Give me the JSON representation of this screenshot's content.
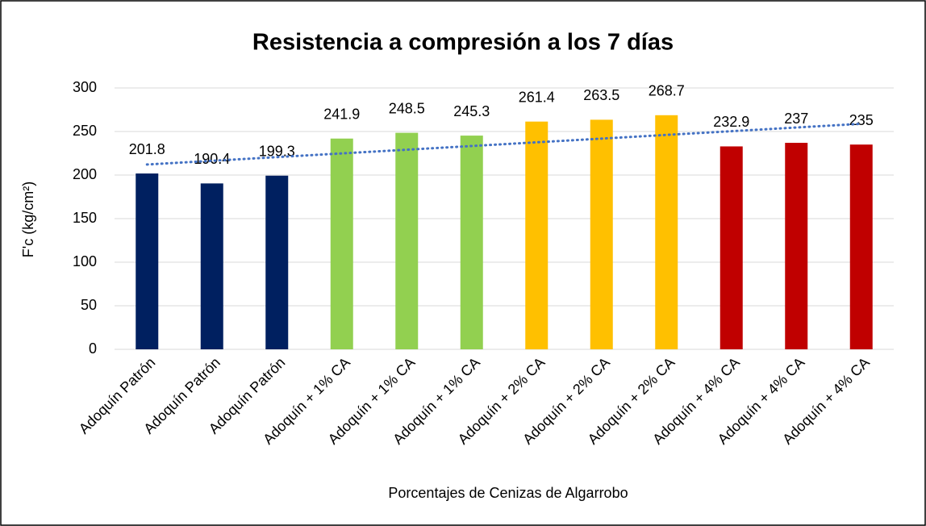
{
  "chart_data": {
    "type": "bar",
    "title": "Resistencia a compresión a los 7 días",
    "x_label": "Porcentajes de Cenizas de Algarrobo",
    "y_label": "F'c (kg/cm²)",
    "categories": [
      "Adoquín Patrón",
      "Adoquín Patrón",
      "Adoquín Patrón",
      "Adoquín + 1% CA",
      "Adoquín + 1% CA",
      "Adoquín + 1% CA",
      "Adoquín + 2% CA",
      "Adoquín + 2% CA",
      "Adoquín + 2% CA",
      "Adoquín + 4% CA",
      "Adoquín + 4% CA",
      "Adoquín + 4% CA"
    ],
    "values": [
      201.8,
      190.4,
      199.3,
      241.9,
      248.5,
      245.3,
      261.4,
      263.5,
      268.7,
      232.9,
      237,
      235
    ],
    "colors": [
      "#002060",
      "#002060",
      "#002060",
      "#92d050",
      "#92d050",
      "#92d050",
      "#ffc000",
      "#ffc000",
      "#ffc000",
      "#c00000",
      "#c00000",
      "#c00000"
    ],
    "ylim": [
      0,
      300
    ],
    "yticks": [
      0,
      50,
      100,
      150,
      200,
      250,
      300
    ],
    "grid": true,
    "trendline": "linear",
    "trendline_color": "#4472c4"
  }
}
